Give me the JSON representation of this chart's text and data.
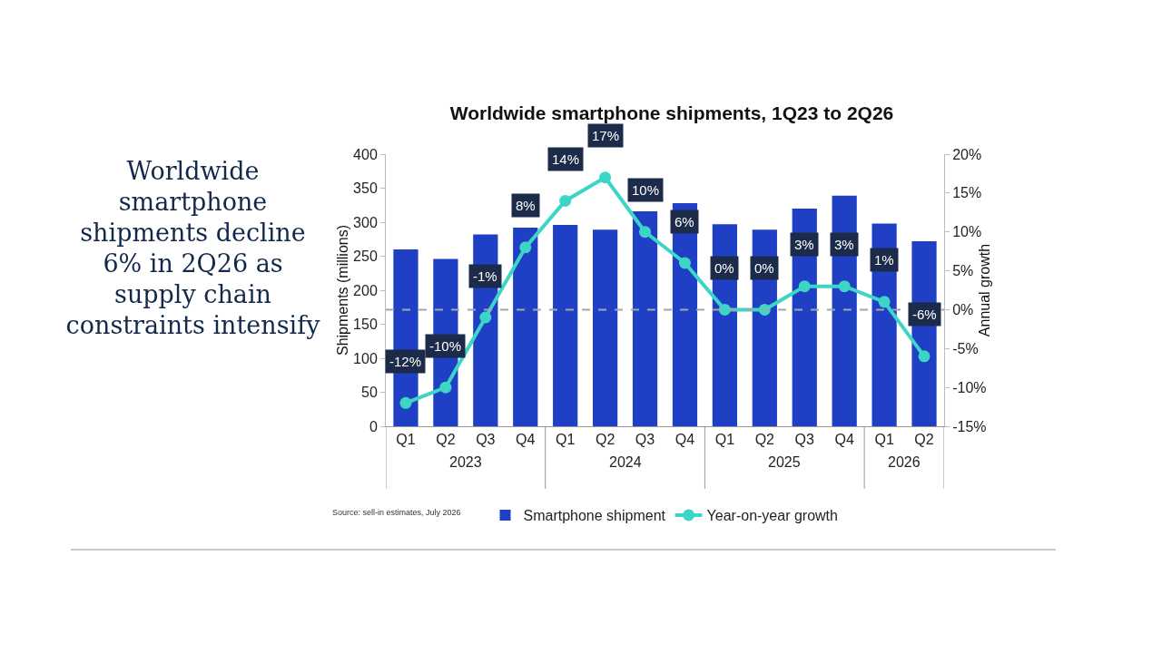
{
  "chart_data": {
    "type": "bar",
    "title": "Worldwide smartphone shipments, 1Q23 to 2Q26",
    "subtitle": "Worldwide smartphone shipments decline 6% in 2Q26 as supply chain constraints intensify",
    "categories": [
      "Q1",
      "Q2",
      "Q3",
      "Q4",
      "Q1",
      "Q2",
      "Q3",
      "Q4",
      "Q1",
      "Q2",
      "Q3",
      "Q4",
      "Q1",
      "Q2"
    ],
    "series": [
      {
        "name": "Smartphone shipment",
        "color": "#1f3fc4",
        "values": [
          260,
          246,
          282,
          292,
          296,
          289,
          316,
          328,
          297,
          289,
          320,
          339,
          298,
          272
        ]
      },
      {
        "name": "Year-on-year growth",
        "type": "line",
        "axis": "y2",
        "color": "#3dd6c6",
        "values": [
          -12,
          -10,
          -1,
          8,
          14,
          17,
          10,
          6,
          0,
          0,
          3,
          3,
          1,
          -6
        ],
        "value_labels": [
          "-12%",
          "-10%",
          "-1%",
          "8%",
          "14%",
          "17%",
          "10%",
          "6%",
          "0%",
          "0%",
          "3%",
          "3%",
          "1%",
          "-6%"
        ]
      }
    ],
    "ylabel": "Shipments (millions)",
    "y2label": "Annual growth",
    "ylim": [
      0,
      400
    ],
    "yticks": [
      0,
      50,
      100,
      150,
      200,
      250,
      300,
      350,
      400
    ],
    "y2lim": [
      -15,
      20
    ],
    "y2ticks": [
      {
        "value": -15,
        "label": "-15%"
      },
      {
        "value": -10,
        "label": "-10%"
      },
      {
        "value": -5,
        "label": "-5%"
      },
      {
        "value": 0,
        "label": "0%"
      },
      {
        "value": 5,
        "label": "5%"
      },
      {
        "value": 10,
        "label": "10%"
      },
      {
        "value": 15,
        "label": "15%"
      },
      {
        "value": 20,
        "label": "20%"
      }
    ],
    "ref_lines": [
      {
        "axis": "y2",
        "value": 0,
        "color": "#a6a6a6",
        "line_style": "dashed"
      }
    ],
    "annotations": [
      "2023",
      "2024",
      "2025",
      "2026",
      "Source: sell-in estimates, July 2026"
    ],
    "grid": false,
    "legend": "bottom",
    "marker": "circle",
    "line_style": "solid"
  }
}
